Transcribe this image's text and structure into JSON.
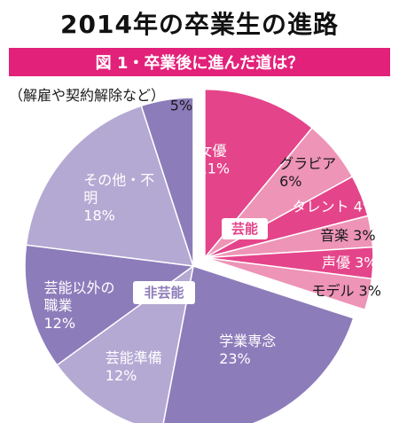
{
  "chart_data": {
    "type": "pie",
    "title": "2014年の卒業生の進路",
    "subtitle": "図 1・卒業後に進んだ道は？",
    "groups": [
      {
        "name": "芸能",
        "color": "#e4448a"
      },
      {
        "name": "非芸能",
        "color": "#8d7cba"
      }
    ],
    "slices": [
      {
        "name": "女優",
        "value": 11,
        "value_label": "11%",
        "group": "芸能",
        "color": "#e4448a"
      },
      {
        "name": "グラビア",
        "value": 6,
        "value_label": "6%",
        "group": "芸能",
        "color": "#ee94b6"
      },
      {
        "name": "タレント",
        "value": 4,
        "value_label": "4%",
        "group": "芸能",
        "color": "#e4448a"
      },
      {
        "name": "音楽",
        "value": 3,
        "value_label": "3%",
        "group": "芸能",
        "color": "#ee94b6"
      },
      {
        "name": "声優",
        "value": 3,
        "value_label": "3%",
        "group": "芸能",
        "color": "#e4448a"
      },
      {
        "name": "モデル",
        "value": 3,
        "value_label": "3%",
        "group": "芸能",
        "color": "#ee94b6"
      },
      {
        "name": "学業専念",
        "value": 23,
        "value_label": "23%",
        "group": "非芸能",
        "color": "#8d7cba"
      },
      {
        "name": "芸能準備",
        "value": 12,
        "value_label": "12%",
        "group": "非芸能",
        "color": "#b4a9d3"
      },
      {
        "name": "芸能以外の職業",
        "value": 12,
        "value_label": "12%",
        "group": "非芸能",
        "color": "#8d7cba"
      },
      {
        "name": "その他・不明",
        "value": 18,
        "value_label": "18%",
        "group": "非芸能",
        "color": "#b4a9d3"
      },
      {
        "name": "",
        "value": 5,
        "value_label": "5%",
        "group": "非芸能",
        "color": "#8d7cba"
      }
    ],
    "annotation": "（解雇や契約解除など）"
  }
}
